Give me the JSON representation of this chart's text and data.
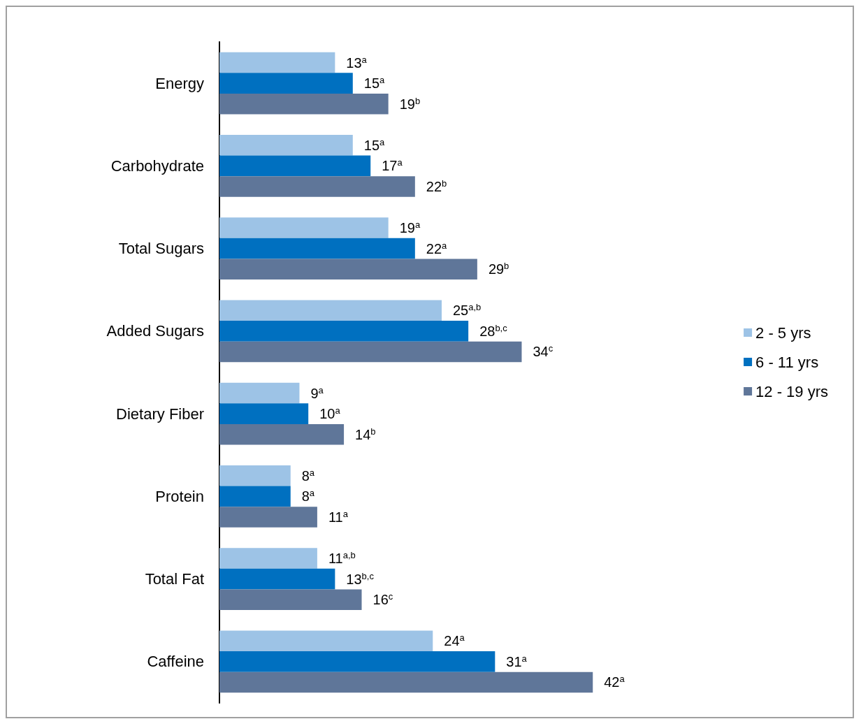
{
  "chart_data": {
    "type": "bar",
    "orientation": "horizontal",
    "categories": [
      "Energy",
      "Carbohydrate",
      "Total Sugars",
      "Added Sugars",
      "Dietary Fiber",
      "Protein",
      "Total Fat",
      "Caffeine"
    ],
    "series": [
      {
        "name": "2 - 5 yrs",
        "color": "#9dc3e6",
        "values": [
          13,
          15,
          19,
          25,
          9,
          8,
          11,
          24
        ],
        "value_labels": [
          "13$^{a}$",
          "15$^{a}$",
          "19$^{a}$",
          "25$^{a,b}$",
          "9$^{a}$",
          "8$^{a}$",
          "11$^{a,b}$",
          "24$^{a}$"
        ]
      },
      {
        "name": "6 - 11 yrs",
        "color": "#0070c0",
        "values": [
          15,
          17,
          22,
          28,
          10,
          8,
          13,
          31
        ],
        "value_labels": [
          "15$^{a}$",
          "17$^{a}$",
          "22$^{a}$",
          "28$^{b,c}$",
          "10$^{a}$",
          "8$^{a}$",
          "13$^{b,c}$",
          "31$^{a}$"
        ]
      },
      {
        "name": "12 - 19 yrs",
        "color": "#5f7699",
        "values": [
          19,
          22,
          29,
          34,
          14,
          11,
          16,
          42
        ],
        "value_labels": [
          "19$^{b}$",
          "22$^{b}$",
          "29$^{b}$",
          "34$^{c}$",
          "14$^{b}$",
          "11$^{a}$",
          "16$^{c}$",
          "42$^{a}$"
        ]
      }
    ],
    "legend": "right"
  }
}
